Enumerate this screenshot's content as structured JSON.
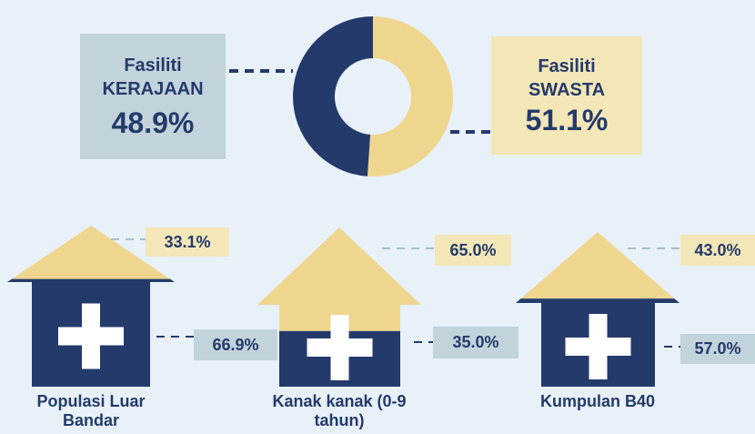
{
  "chart_data": [
    {
      "type": "pie",
      "categories": [
        "Fasiliti KERAJAAN",
        "Fasiliti SWASTA"
      ],
      "values": [
        48.9,
        51.1
      ],
      "value_labels": [
        "48.9%",
        "51.1%"
      ],
      "colors": [
        "#243a6b",
        "#efd68f"
      ]
    },
    {
      "type": "house",
      "categories": [
        "Populasi Luar Bandar",
        "Kanak kanak (0-9 tahun)",
        "Kumpulan B40"
      ],
      "series": [
        {
          "color": "#efd68f",
          "values": [
            33.1,
            65.0,
            43.0
          ],
          "value_labels": [
            "33.1%",
            "65.0%",
            "43.0%"
          ]
        },
        {
          "color": "#243a6b",
          "values": [
            66.9,
            35.0,
            57.0
          ],
          "value_labels": [
            "66.9%",
            "35.0%",
            "57.0%"
          ]
        }
      ]
    }
  ]
}
